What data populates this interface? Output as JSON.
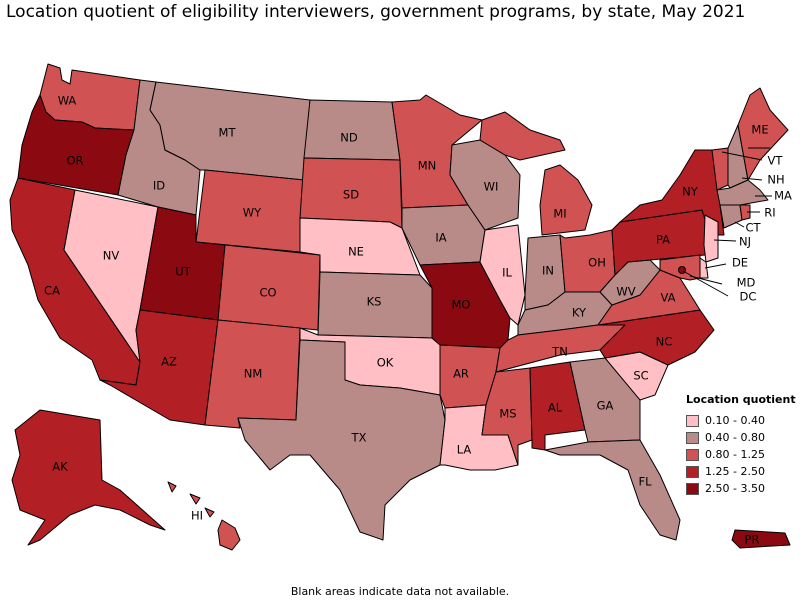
{
  "title": "Location quotient of eligibility interviewers, government programs, by state, May 2021",
  "legend": {
    "title": "Location quotient",
    "items": [
      {
        "label": "0.10 - 0.40",
        "color": "#FFBFC4"
      },
      {
        "label": "0.40 - 0.80",
        "color": "#B88A88"
      },
      {
        "label": "0.80 - 1.25",
        "color": "#D05252"
      },
      {
        "label": "1.25 - 2.50",
        "color": "#B22025"
      },
      {
        "label": "2.50 - 3.50",
        "color": "#8B0A12"
      }
    ]
  },
  "footnote": "Blank areas indicate data not available.",
  "states": {
    "WA": {
      "label": "WA",
      "class": 2
    },
    "OR": {
      "label": "OR",
      "class": 4
    },
    "CA": {
      "label": "CA",
      "class": 3
    },
    "NV": {
      "label": "NV",
      "class": 0
    },
    "ID": {
      "label": "ID",
      "class": 1
    },
    "MT": {
      "label": "MT",
      "class": 1
    },
    "WY": {
      "label": "WY",
      "class": 2
    },
    "UT": {
      "label": "UT",
      "class": 4
    },
    "AZ": {
      "label": "AZ",
      "class": 3
    },
    "CO": {
      "label": "CO",
      "class": 2
    },
    "NM": {
      "label": "NM",
      "class": 2
    },
    "ND": {
      "label": "ND",
      "class": 1
    },
    "SD": {
      "label": "SD",
      "class": 2
    },
    "NE": {
      "label": "NE",
      "class": 0
    },
    "KS": {
      "label": "KS",
      "class": 1
    },
    "OK": {
      "label": "OK",
      "class": 0
    },
    "TX": {
      "label": "TX",
      "class": 1
    },
    "MN": {
      "label": "MN",
      "class": 2
    },
    "IA": {
      "label": "IA",
      "class": 1
    },
    "MO": {
      "label": "MO",
      "class": 4
    },
    "AR": {
      "label": "AR",
      "class": 2
    },
    "LA": {
      "label": "LA",
      "class": 0
    },
    "WI": {
      "label": "WI",
      "class": 1
    },
    "IL": {
      "label": "IL",
      "class": 0
    },
    "MI": {
      "label": "MI",
      "class": 2
    },
    "IN": {
      "label": "IN",
      "class": 1
    },
    "OH": {
      "label": "OH",
      "class": 2
    },
    "KY": {
      "label": "KY",
      "class": 1
    },
    "TN": {
      "label": "TN",
      "class": 2
    },
    "MS": {
      "label": "MS",
      "class": 2
    },
    "AL": {
      "label": "AL",
      "class": 3
    },
    "GA": {
      "label": "GA",
      "class": 1
    },
    "FL": {
      "label": "FL",
      "class": 1
    },
    "SC": {
      "label": "SC",
      "class": 0
    },
    "NC": {
      "label": "NC",
      "class": 3
    },
    "VA": {
      "label": "VA",
      "class": 2
    },
    "WV": {
      "label": "WV",
      "class": 1
    },
    "PA": {
      "label": "PA",
      "class": 3
    },
    "NY": {
      "label": "NY",
      "class": 3
    },
    "VT": {
      "label": "VT",
      "class": 2
    },
    "NH": {
      "label": "NH",
      "class": 1
    },
    "ME": {
      "label": "ME",
      "class": 2
    },
    "MA": {
      "label": "MA",
      "class": 1
    },
    "RI": {
      "label": "RI",
      "class": 2
    },
    "CT": {
      "label": "CT",
      "class": 1
    },
    "NJ": {
      "label": "NJ",
      "class": 0
    },
    "DE": {
      "label": "DE",
      "class": 0
    },
    "MD": {
      "label": "MD",
      "class": 2
    },
    "DC": {
      "label": "DC",
      "class": 4
    },
    "AK": {
      "label": "AK",
      "class": 3
    },
    "HI": {
      "label": "HI",
      "class": 2
    },
    "PR": {
      "label": "PR",
      "class": 4
    }
  }
}
